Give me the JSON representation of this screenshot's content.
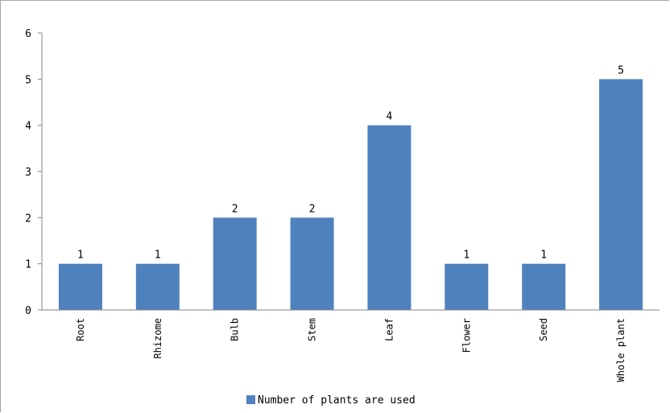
{
  "chart_data": {
    "type": "bar",
    "categories": [
      "Root",
      "Rhizome",
      "Bulb",
      "Stem",
      "Leaf",
      "Flower",
      "Seed",
      "Whole plant"
    ],
    "series": [
      {
        "name": "Number of plants are used",
        "values": [
          1,
          1,
          2,
          2,
          4,
          1,
          1,
          5
        ],
        "color": "#4f81bd"
      }
    ],
    "yticks": [
      "0",
      "1",
      "2",
      "3",
      "4",
      "5",
      "6"
    ],
    "ylim": [
      0,
      6
    ],
    "grid": false,
    "legend_position": "bottom"
  }
}
